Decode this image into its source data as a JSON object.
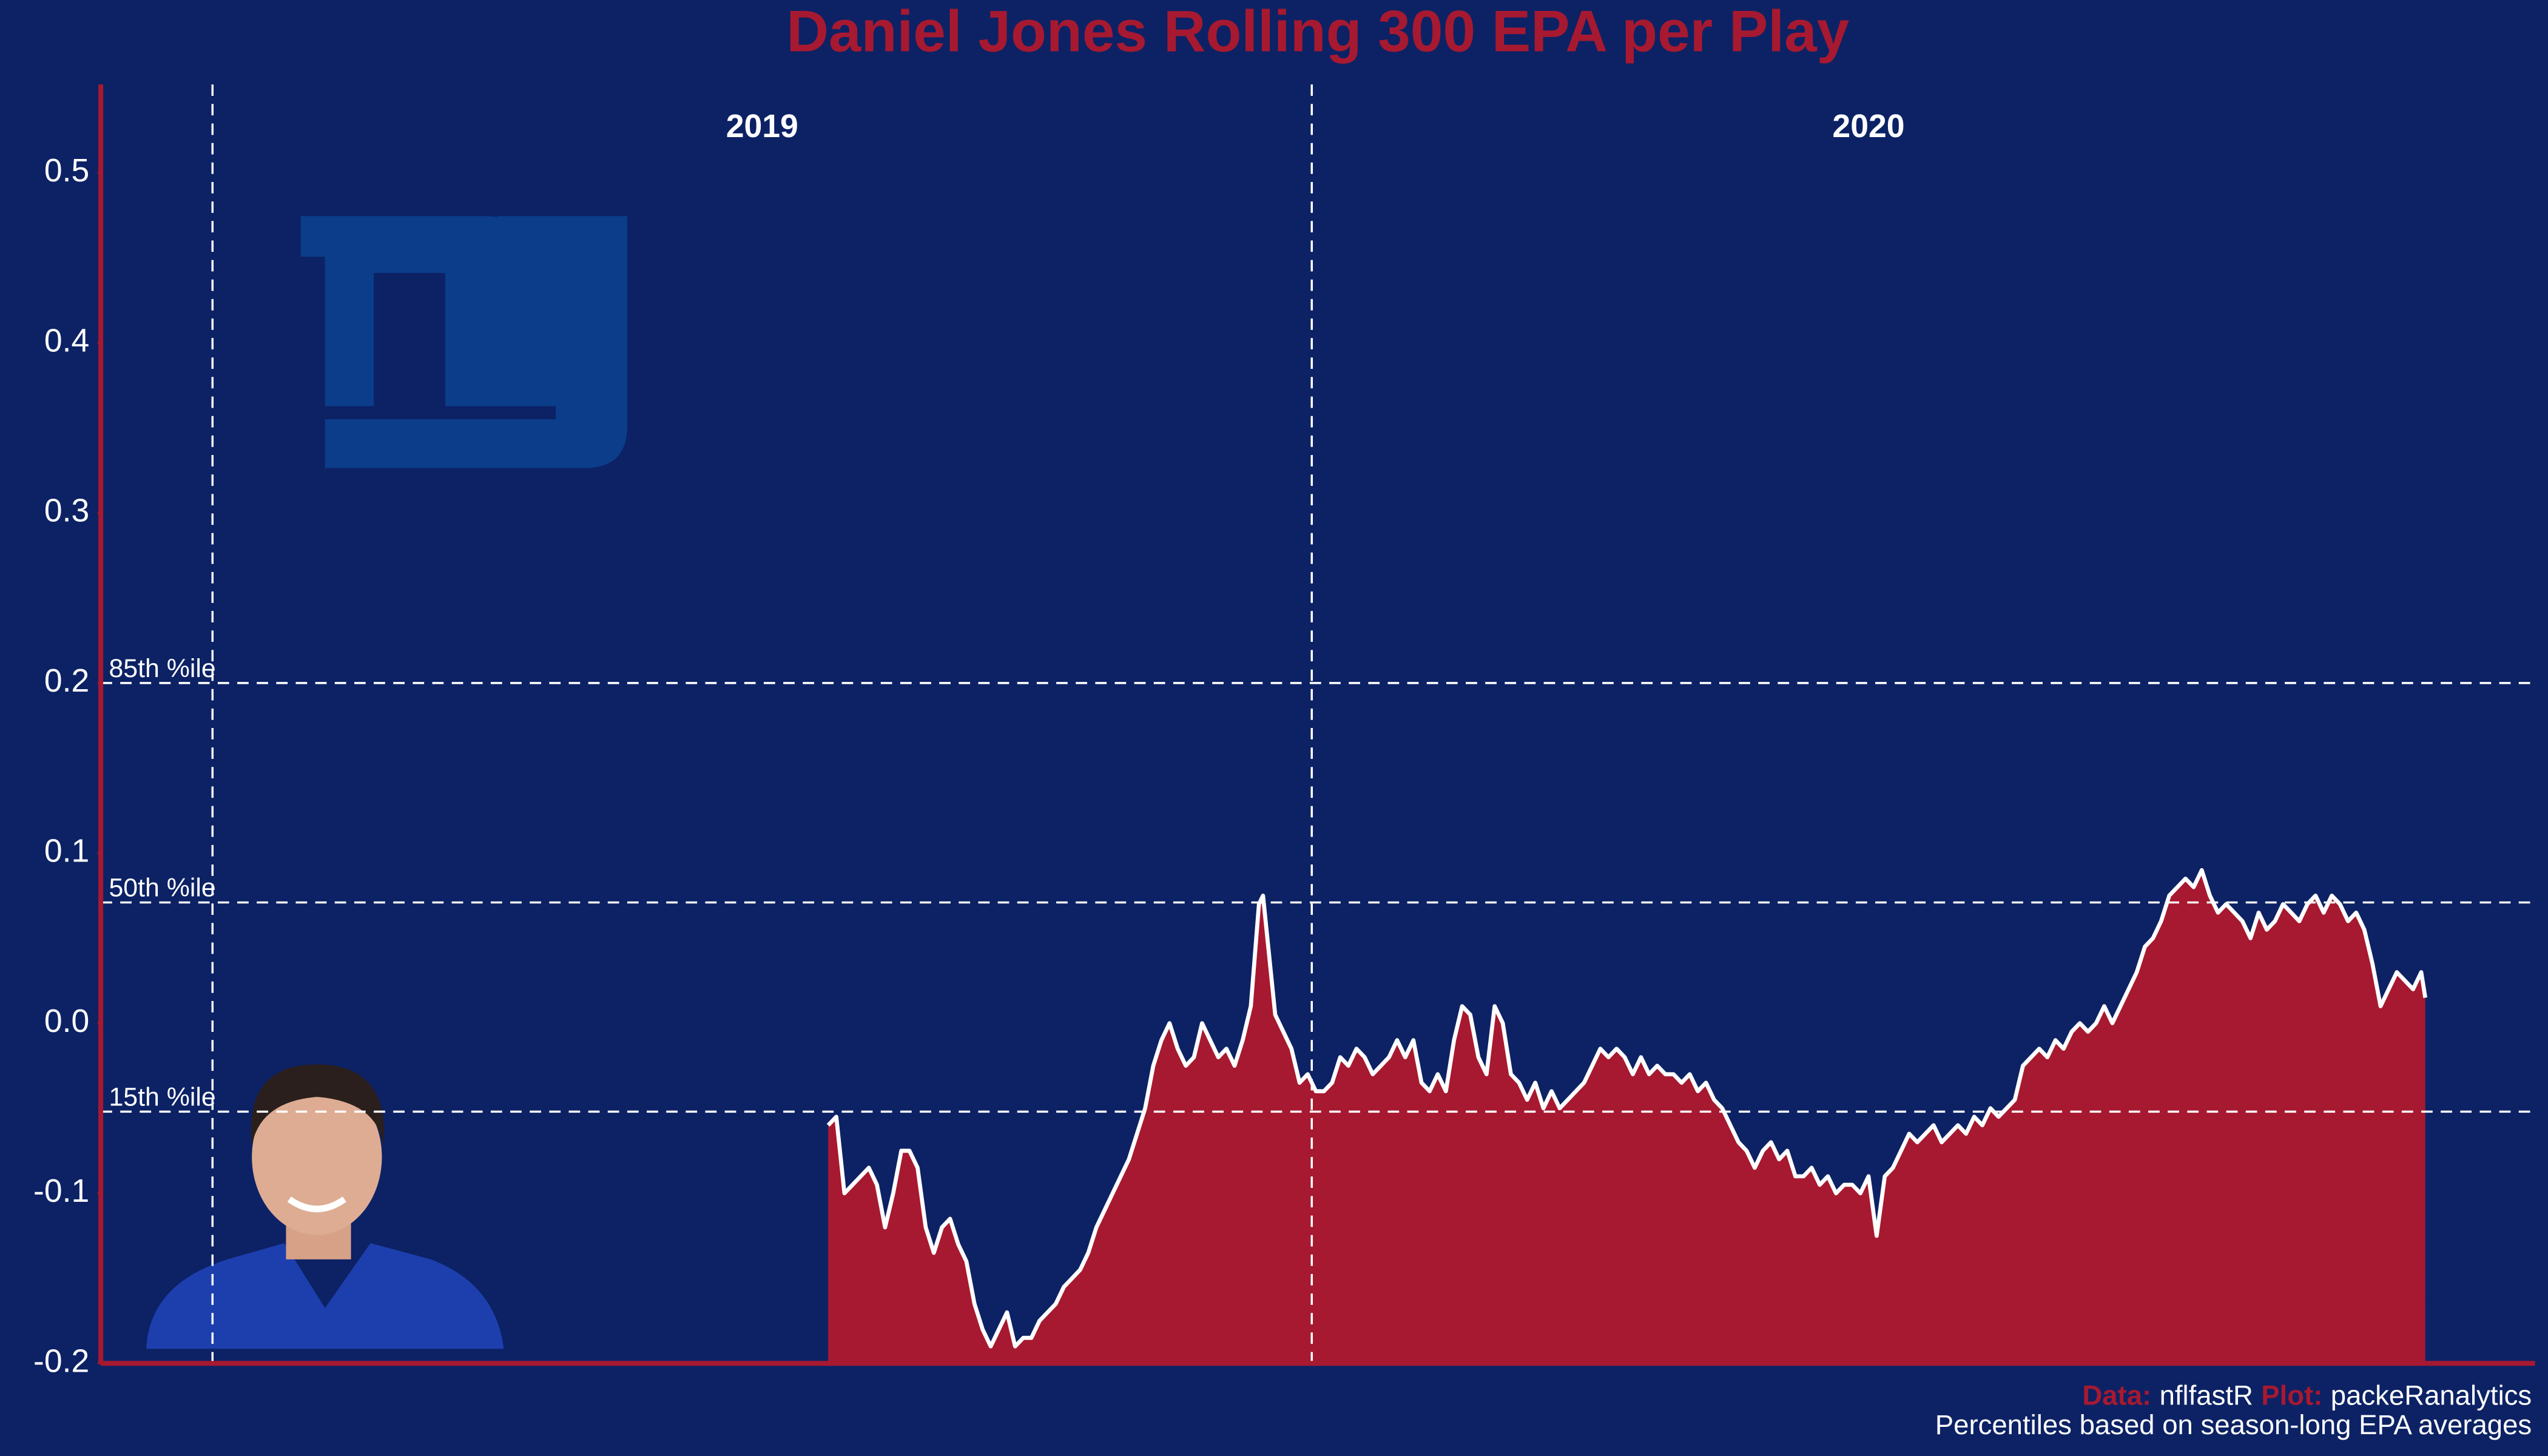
{
  "chart_data": {
    "type": "area",
    "title": "Daniel Jones Rolling 300 EPA per Play",
    "x": [
      304,
      308,
      312,
      316,
      320,
      324,
      328,
      332,
      336,
      340,
      344,
      348,
      352,
      356,
      360,
      364,
      368,
      372,
      376,
      380,
      384,
      388,
      392,
      396,
      400,
      404,
      408,
      412,
      416,
      420,
      424,
      428,
      432,
      436,
      440,
      444,
      448,
      452,
      456,
      460,
      464,
      468,
      472,
      476,
      480,
      484,
      488,
      492,
      496,
      500,
      504,
      508,
      512,
      516,
      518,
      521,
      524,
      528,
      532,
      536,
      540,
      544,
      548,
      552,
      556,
      560,
      564,
      568,
      572,
      576,
      580,
      584,
      588,
      592,
      596,
      600,
      604,
      608,
      612,
      616,
      620,
      624,
      628,
      632,
      636,
      640,
      644,
      648,
      652,
      656,
      660,
      664,
      668,
      672,
      676,
      680,
      684,
      688,
      692,
      696,
      700,
      704,
      708,
      712,
      716,
      720,
      724,
      728,
      732,
      736,
      740,
      744,
      748,
      752,
      756,
      760,
      764,
      768,
      772,
      776,
      780,
      784,
      788,
      792,
      796,
      800,
      804,
      808,
      812,
      816,
      820,
      824,
      828,
      832,
      836,
      840,
      844,
      848,
      852,
      856,
      860,
      864,
      868,
      872,
      876,
      880,
      884,
      888,
      892,
      896,
      900,
      904,
      908,
      912,
      916,
      920,
      924,
      928,
      932,
      936,
      940,
      944,
      948,
      952,
      956,
      960,
      964,
      968,
      972,
      976,
      980,
      984,
      988,
      992,
      996,
      1000,
      1004,
      1008,
      1012,
      1016,
      1020,
      1024,
      1028,
      1032,
      1036,
      1040,
      1044,
      1048,
      1052,
      1056,
      1060,
      1064,
      1068,
      1072,
      1076,
      1080,
      1084,
      1088,
      1090
    ],
    "values": [
      -0.06,
      -0.055,
      -0.1,
      -0.095,
      -0.09,
      -0.085,
      -0.095,
      -0.12,
      -0.1,
      -0.075,
      -0.075,
      -0.085,
      -0.12,
      -0.135,
      -0.12,
      -0.115,
      -0.13,
      -0.14,
      -0.165,
      -0.18,
      -0.19,
      -0.18,
      -0.17,
      -0.19,
      -0.185,
      -0.185,
      -0.175,
      -0.17,
      -0.165,
      -0.155,
      -0.15,
      -0.145,
      -0.135,
      -0.12,
      -0.11,
      -0.1,
      -0.09,
      -0.08,
      -0.065,
      -0.05,
      -0.025,
      -0.01,
      0.0,
      -0.015,
      -0.025,
      -0.02,
      0.0,
      -0.01,
      -0.02,
      -0.015,
      -0.025,
      -0.01,
      0.01,
      0.07,
      0.075,
      0.04,
      0.005,
      -0.005,
      -0.015,
      -0.035,
      -0.03,
      -0.04,
      -0.04,
      -0.035,
      -0.02,
      -0.025,
      -0.015,
      -0.02,
      -0.03,
      -0.025,
      -0.02,
      -0.01,
      -0.02,
      -0.01,
      -0.035,
      -0.04,
      -0.03,
      -0.04,
      -0.01,
      0.01,
      0.005,
      -0.02,
      -0.03,
      0.01,
      0.0,
      -0.03,
      -0.035,
      -0.045,
      -0.035,
      -0.05,
      -0.04,
      -0.05,
      -0.045,
      -0.04,
      -0.035,
      -0.025,
      -0.015,
      -0.02,
      -0.015,
      -0.02,
      -0.03,
      -0.02,
      -0.03,
      -0.025,
      -0.03,
      -0.03,
      -0.035,
      -0.03,
      -0.04,
      -0.035,
      -0.045,
      -0.05,
      -0.06,
      -0.07,
      -0.075,
      -0.085,
      -0.075,
      -0.07,
      -0.08,
      -0.075,
      -0.09,
      -0.09,
      -0.085,
      -0.095,
      -0.09,
      -0.1,
      -0.095,
      -0.095,
      -0.1,
      -0.09,
      -0.125,
      -0.09,
      -0.085,
      -0.075,
      -0.065,
      -0.07,
      -0.065,
      -0.06,
      -0.07,
      -0.065,
      -0.06,
      -0.065,
      -0.055,
      -0.06,
      -0.05,
      -0.055,
      -0.05,
      -0.045,
      -0.025,
      -0.02,
      -0.015,
      -0.02,
      -0.01,
      -0.015,
      -0.005,
      0.0,
      -0.005,
      0.0,
      0.01,
      0.0,
      0.01,
      0.02,
      0.03,
      0.045,
      0.05,
      0.06,
      0.075,
      0.08,
      0.085,
      0.08,
      0.09,
      0.075,
      0.065,
      0.07,
      0.065,
      0.06,
      0.05,
      0.065,
      0.055,
      0.06,
      0.07,
      0.065,
      0.06,
      0.07,
      0.075,
      0.065,
      0.075,
      0.07,
      0.06,
      0.065,
      0.055,
      0.035,
      0.01,
      0.02,
      0.03,
      0.025,
      0.02,
      0.03,
      0.015
    ],
    "color": "#a71930",
    "line_color": "#ffffff",
    "xlim": [
      -54,
      1144
    ],
    "ylim": [
      -0.2,
      0.55
    ],
    "yticks": [
      -0.2,
      -0.1,
      {
        "value": 0,
        "label": "0.0"
      },
      0.1,
      0.2,
      0.3,
      0.4,
      0.5
    ],
    "reference_lines": [
      {
        "value": 0.2,
        "label": "85th %ile"
      },
      {
        "value": 0.071,
        "label": "50th %ile"
      },
      {
        "value": -0.052,
        "label": "15th %ile"
      }
    ],
    "seasons": [
      {
        "x": 1,
        "label": "2019"
      },
      {
        "x": 542,
        "label": "2020"
      }
    ],
    "caption": {
      "data_label": "Data:",
      "data": "nflfastR",
      "plot_label": "Plot:",
      "plot": "packeRanalytics",
      "note": "Percentiles based on season-long EPA averages"
    }
  }
}
